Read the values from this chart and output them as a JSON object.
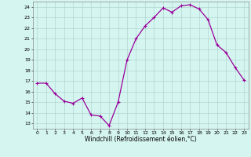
{
  "x": [
    0,
    1,
    2,
    3,
    4,
    5,
    6,
    7,
    8,
    9,
    10,
    11,
    12,
    13,
    14,
    15,
    16,
    17,
    18,
    19,
    20,
    21,
    22,
    23
  ],
  "y": [
    16.8,
    16.8,
    15.8,
    15.1,
    14.9,
    15.4,
    13.8,
    13.7,
    12.8,
    15.0,
    19.0,
    21.0,
    22.2,
    23.0,
    23.9,
    23.5,
    24.1,
    24.2,
    23.8,
    22.8,
    20.4,
    19.7,
    18.3,
    17.1
  ],
  "line_color": "#990099",
  "marker": "+",
  "markersize": 3,
  "linewidth": 0.9,
  "xlabel": "Windchill (Refroidissement éolien,°C)",
  "xlabel_fontsize": 5.5,
  "yticks": [
    13,
    14,
    15,
    16,
    17,
    18,
    19,
    20,
    21,
    22,
    23,
    24
  ],
  "xticks": [
    0,
    1,
    2,
    3,
    4,
    5,
    6,
    7,
    8,
    9,
    10,
    11,
    12,
    13,
    14,
    15,
    16,
    17,
    18,
    19,
    20,
    21,
    22,
    23
  ],
  "ylim": [
    12.5,
    24.5
  ],
  "xlim": [
    -0.5,
    23.5
  ],
  "bg_color": "#d5f5f0",
  "grid_color": "#b0d8d0",
  "tick_fontsize": 4.5
}
